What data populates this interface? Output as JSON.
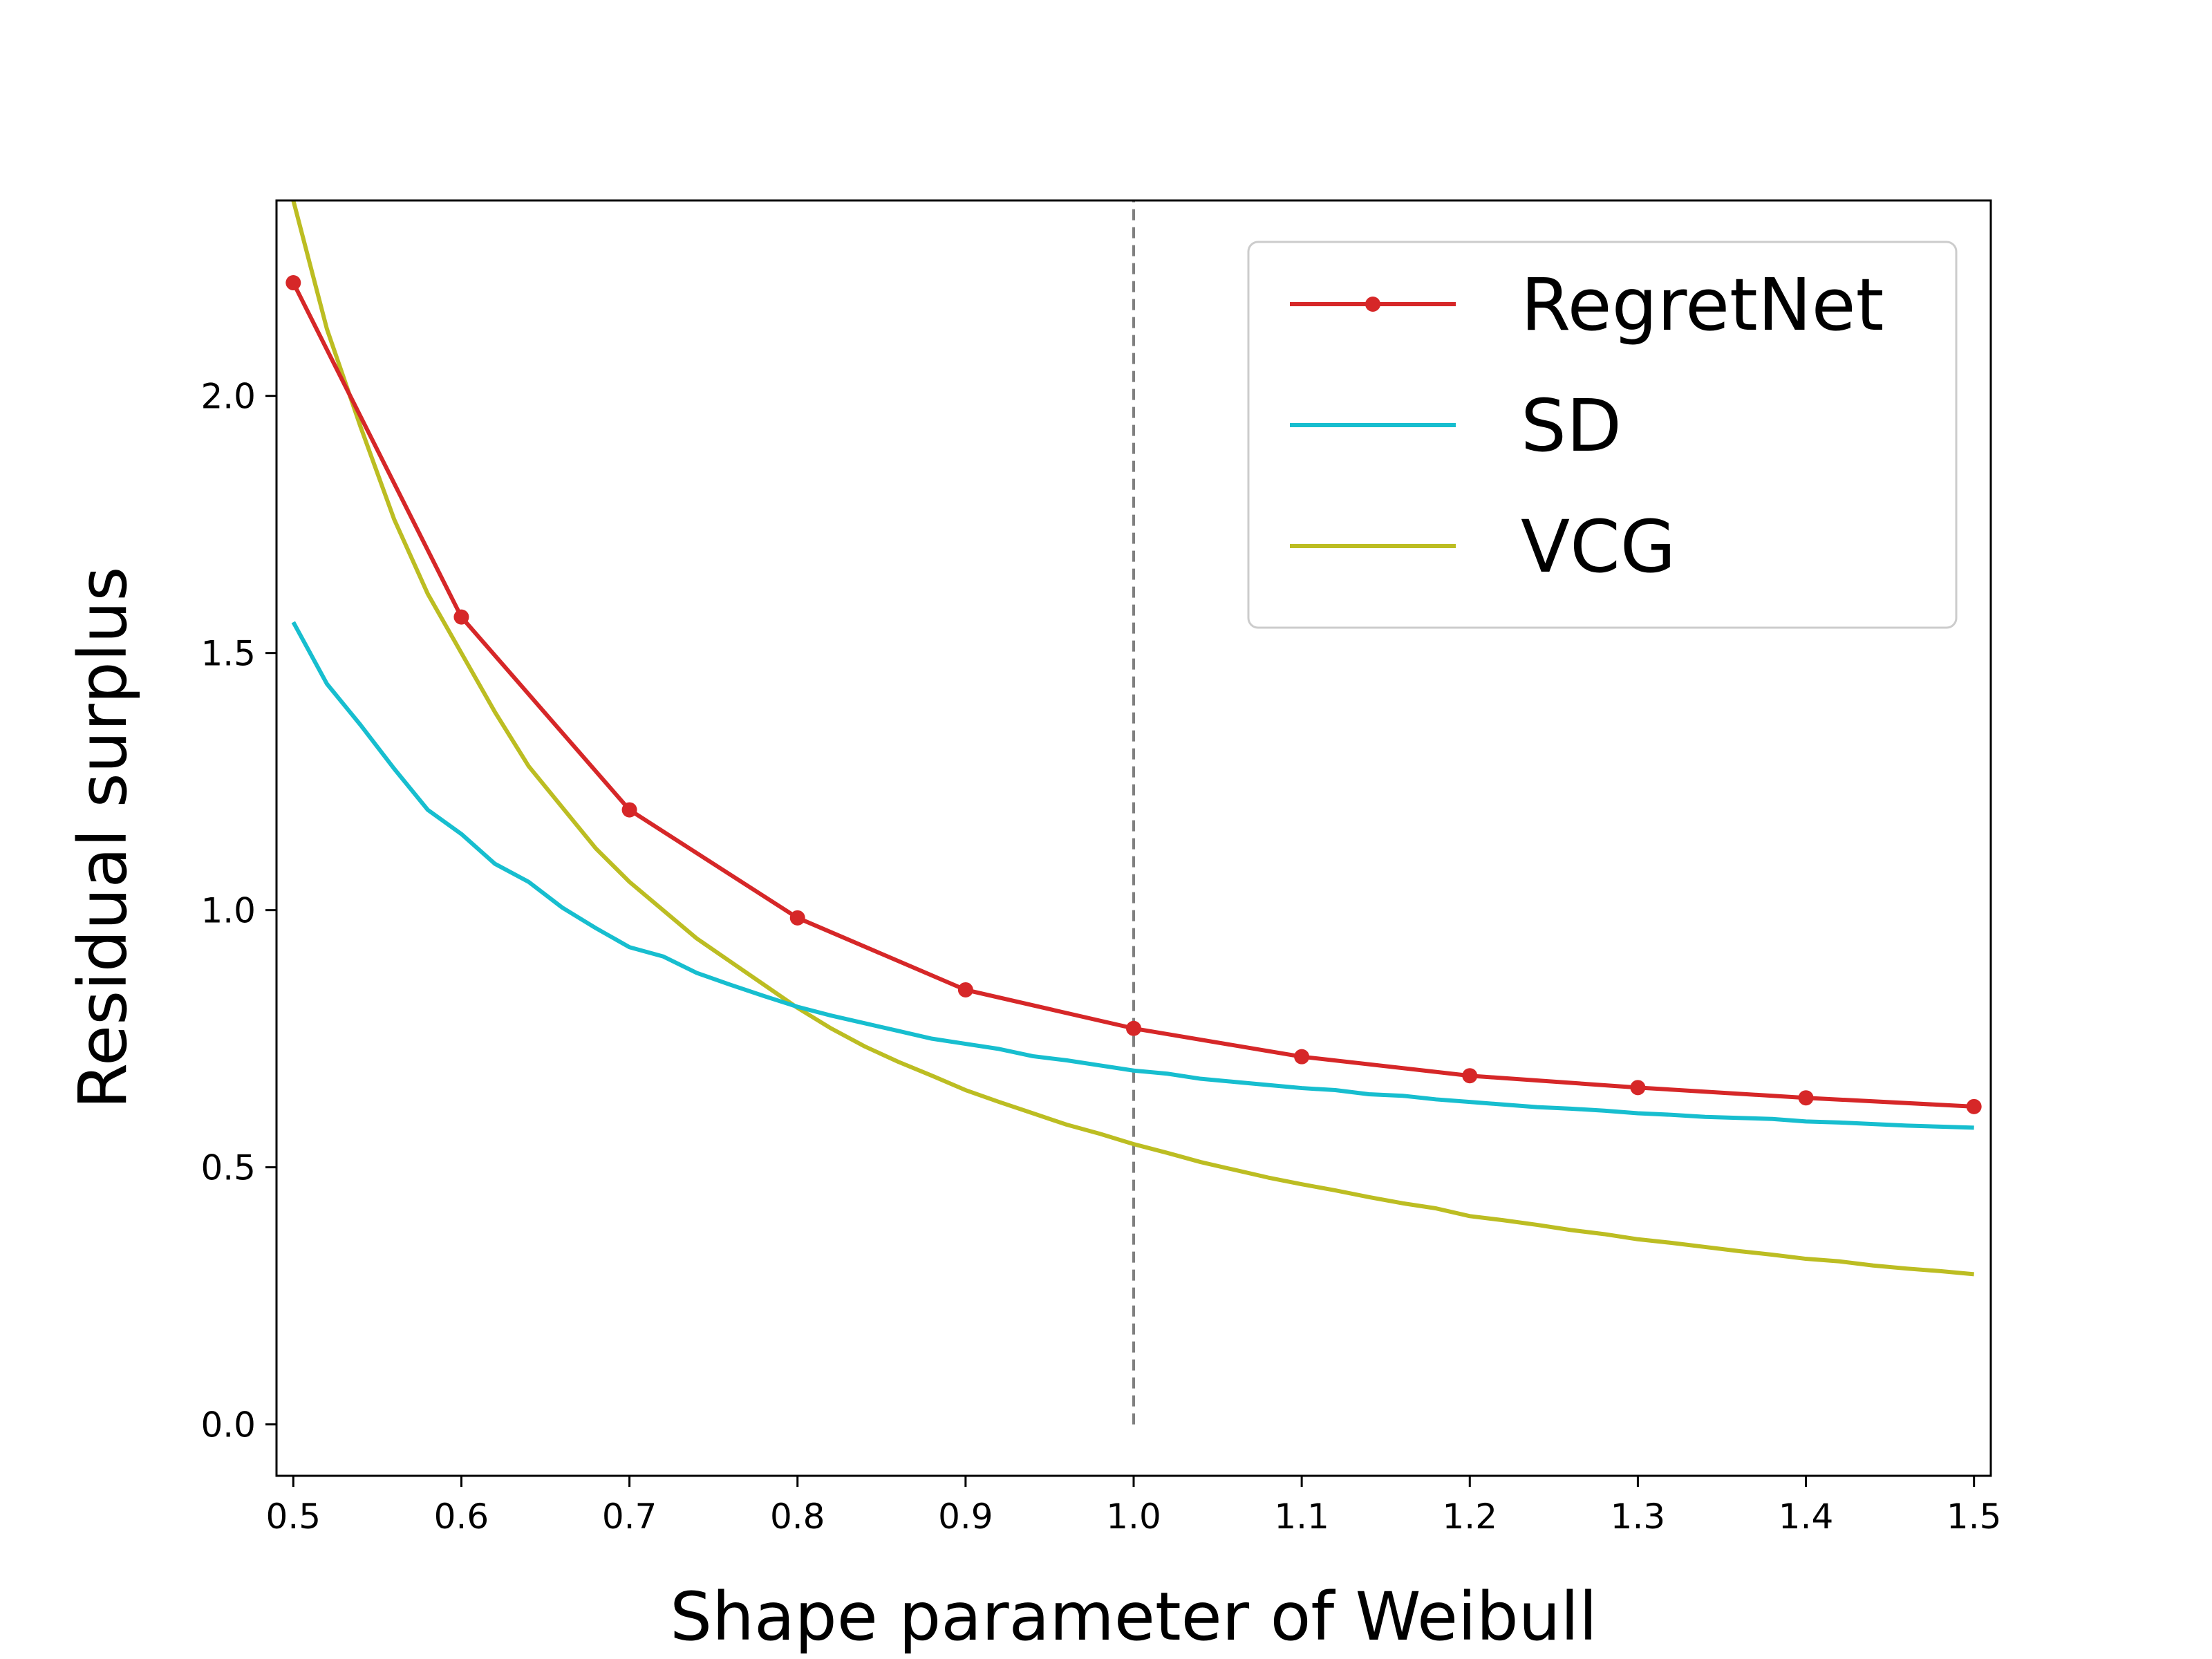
{
  "chart_data": {
    "type": "line",
    "title": "",
    "xlabel": "Shape parameter of Weibull",
    "ylabel": "Residual surplus",
    "xlim": [
      0.49,
      1.51
    ],
    "ylim": [
      -0.1,
      2.38
    ],
    "xticks": [
      "0.5",
      "0.6",
      "0.7",
      "0.8",
      "0.9",
      "1.0",
      "1.1",
      "1.2",
      "1.3",
      "1.4",
      "1.5"
    ],
    "yticks": [
      "0.0",
      "0.5",
      "1.0",
      "1.5",
      "2.0"
    ],
    "reference_line": {
      "x": 1.0,
      "y_from": 0.0,
      "y_to": 2.38,
      "color": "#808080",
      "style": "dashed"
    },
    "legend_position": "top-right",
    "series": [
      {
        "name": "RegretNet",
        "color": "#d62728",
        "marker": "dot",
        "x": [
          0.5,
          0.6,
          0.7,
          0.8,
          0.9,
          1.0,
          1.1,
          1.2,
          1.3,
          1.4,
          1.5
        ],
        "y": [
          2.22,
          1.57,
          1.195,
          0.985,
          0.845,
          0.77,
          0.715,
          0.678,
          0.655,
          0.635,
          0.618
        ]
      },
      {
        "name": "SD",
        "color": "#17becf",
        "marker": "none",
        "x": [
          0.5,
          0.52,
          0.54,
          0.56,
          0.58,
          0.6,
          0.62,
          0.64,
          0.66,
          0.68,
          0.7,
          0.72,
          0.74,
          0.76,
          0.78,
          0.8,
          0.82,
          0.84,
          0.86,
          0.88,
          0.9,
          0.92,
          0.94,
          0.96,
          0.98,
          1.0,
          1.02,
          1.04,
          1.06,
          1.08,
          1.1,
          1.12,
          1.14,
          1.16,
          1.18,
          1.2,
          1.22,
          1.24,
          1.26,
          1.28,
          1.3,
          1.32,
          1.34,
          1.36,
          1.38,
          1.4,
          1.42,
          1.44,
          1.46,
          1.48,
          1.5
        ],
        "y": [
          1.56,
          1.44,
          1.36,
          1.275,
          1.195,
          1.148,
          1.09,
          1.055,
          1.005,
          0.965,
          0.928,
          0.91,
          0.878,
          0.855,
          0.833,
          0.812,
          0.795,
          0.78,
          0.765,
          0.75,
          0.74,
          0.73,
          0.716,
          0.708,
          0.698,
          0.688,
          0.682,
          0.672,
          0.666,
          0.66,
          0.654,
          0.65,
          0.642,
          0.639,
          0.632,
          0.627,
          0.622,
          0.617,
          0.614,
          0.61,
          0.605,
          0.602,
          0.598,
          0.596,
          0.594,
          0.589,
          0.587,
          0.584,
          0.581,
          0.579,
          0.577
        ]
      },
      {
        "name": "VCG",
        "color": "#bcbd22",
        "marker": "none",
        "x": [
          0.5,
          0.52,
          0.54,
          0.56,
          0.58,
          0.6,
          0.62,
          0.64,
          0.66,
          0.68,
          0.7,
          0.72,
          0.74,
          0.76,
          0.78,
          0.8,
          0.82,
          0.84,
          0.86,
          0.88,
          0.9,
          0.92,
          0.94,
          0.96,
          0.98,
          1.0,
          1.02,
          1.04,
          1.06,
          1.08,
          1.1,
          1.12,
          1.14,
          1.16,
          1.18,
          1.2,
          1.22,
          1.24,
          1.26,
          1.28,
          1.3,
          1.32,
          1.34,
          1.36,
          1.38,
          1.4,
          1.42,
          1.44,
          1.46,
          1.48,
          1.5
        ],
        "y": [
          2.38,
          2.13,
          1.94,
          1.76,
          1.615,
          1.5,
          1.385,
          1.28,
          1.2,
          1.12,
          1.055,
          1.0,
          0.945,
          0.9,
          0.855,
          0.81,
          0.77,
          0.735,
          0.705,
          0.678,
          0.65,
          0.627,
          0.605,
          0.583,
          0.565,
          0.545,
          0.528,
          0.51,
          0.495,
          0.48,
          0.467,
          0.455,
          0.442,
          0.43,
          0.42,
          0.405,
          0.397,
          0.388,
          0.378,
          0.37,
          0.36,
          0.353,
          0.345,
          0.337,
          0.33,
          0.322,
          0.317,
          0.309,
          0.303,
          0.298,
          0.292
        ]
      }
    ]
  }
}
